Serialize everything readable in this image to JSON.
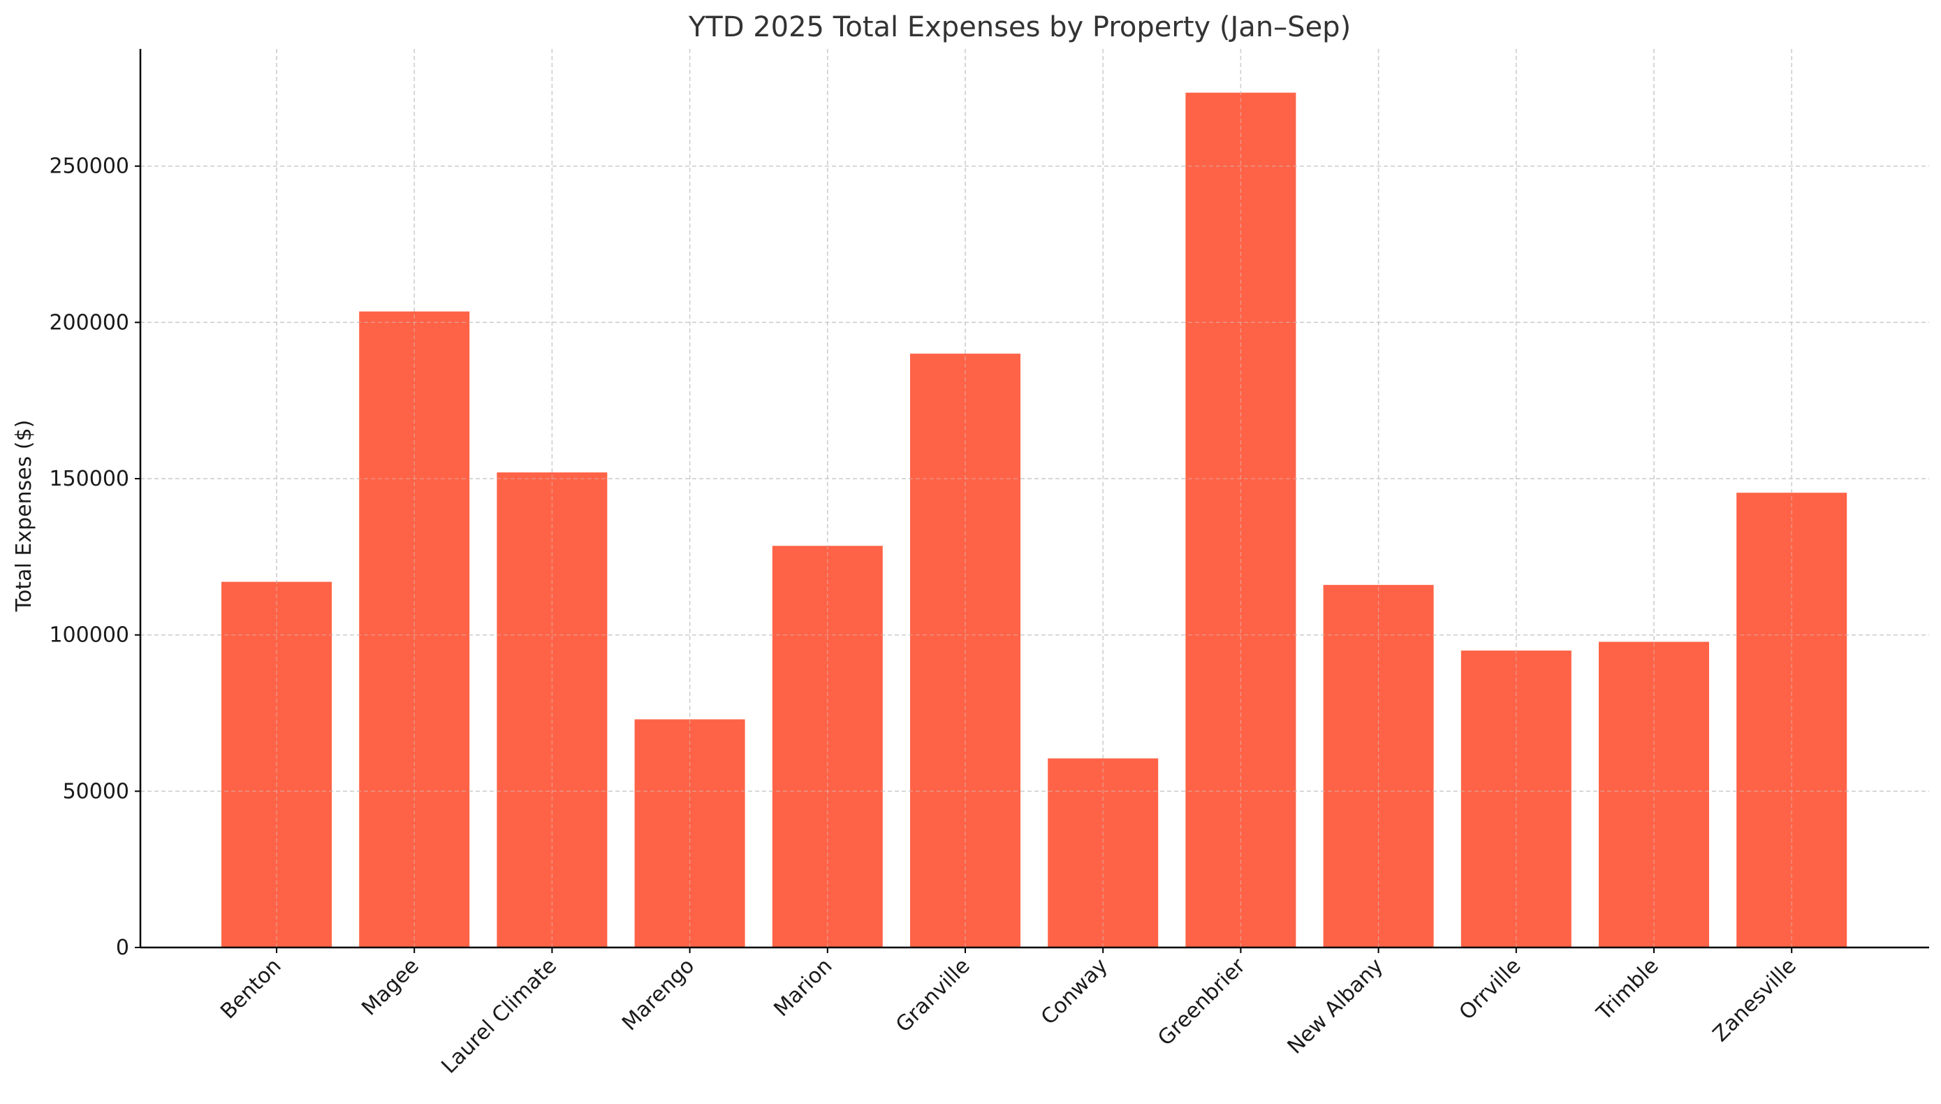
{
  "chart_data": {
    "type": "bar",
    "title": "YTD 2025 Total Expenses by Property (Jan–Sep)",
    "xlabel": "",
    "ylabel": "Total Expenses ($)",
    "categories": [
      "Benton",
      "Magee",
      "Laurel Climate",
      "Marengo",
      "Marion",
      "Granville",
      "Conway",
      "Greenbrier",
      "New Albany",
      "Orrville",
      "Trimble",
      "Zanesville"
    ],
    "values": [
      117000,
      203500,
      152000,
      73000,
      128500,
      190000,
      60500,
      273500,
      116000,
      95000,
      97800,
      145500
    ],
    "ylim": [
      0,
      287500
    ],
    "yticks": [
      0,
      50000,
      100000,
      150000,
      200000,
      250000
    ],
    "ytick_labels": [
      "0",
      "50000",
      "100000",
      "150000",
      "200000",
      "250000"
    ],
    "grid": true,
    "bar_color": "#ff6347",
    "grid_color": "#cccccc",
    "axis_color": "#000000"
  }
}
